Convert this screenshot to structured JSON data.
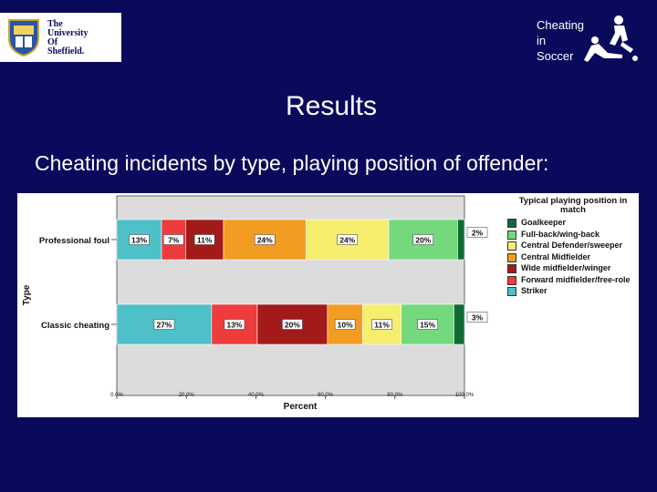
{
  "logo": {
    "lines": [
      "The",
      "University",
      "Of",
      "Sheffield."
    ]
  },
  "brand": {
    "lines": [
      "Cheating",
      "in",
      "Soccer"
    ]
  },
  "slide": {
    "title": "Results",
    "subtitle": "Cheating incidents by type, playing position of offender:"
  },
  "chart_data": {
    "type": "bar",
    "orientation": "horizontal-stacked",
    "categories": [
      "Professional foul",
      "Classic cheating"
    ],
    "xlabel": "Percent",
    "ylabel": "Type",
    "xlim": [
      0,
      100
    ],
    "x_ticks": [
      "0.0%",
      "20.0%",
      "40.0%",
      "60.0%",
      "80.0%",
      "100.0%"
    ],
    "legend_title": "Typical playing position in match",
    "legend_position": "right",
    "series": [
      {
        "name": "Striker",
        "color": "#4ec0c8",
        "values": [
          13,
          27
        ],
        "labels": [
          "13%",
          "27%"
        ]
      },
      {
        "name": "Forward midfielder/free-role",
        "color": "#ee3b3b",
        "values": [
          7,
          13
        ],
        "labels": [
          "7%",
          "13%"
        ]
      },
      {
        "name": "Wide midfielder/winger",
        "color": "#a31a1a",
        "values": [
          11,
          20
        ],
        "labels": [
          "11%",
          "20%"
        ]
      },
      {
        "name": "Central Midfielder",
        "color": "#f39c22",
        "values": [
          24,
          10
        ],
        "labels": [
          "24%",
          "10%"
        ]
      },
      {
        "name": "Central Defender/sweeper",
        "color": "#f5ee6e",
        "values": [
          24,
          11
        ],
        "labels": [
          "24%",
          "11%"
        ]
      },
      {
        "name": "Full-back/wing-back",
        "color": "#74d97c",
        "values": [
          20,
          15
        ],
        "labels": [
          "20%",
          "15%"
        ]
      },
      {
        "name": "Goalkeeper",
        "color": "#0f6b34",
        "values": [
          2,
          3
        ],
        "labels": [
          "2%",
          "3%"
        ]
      }
    ]
  }
}
